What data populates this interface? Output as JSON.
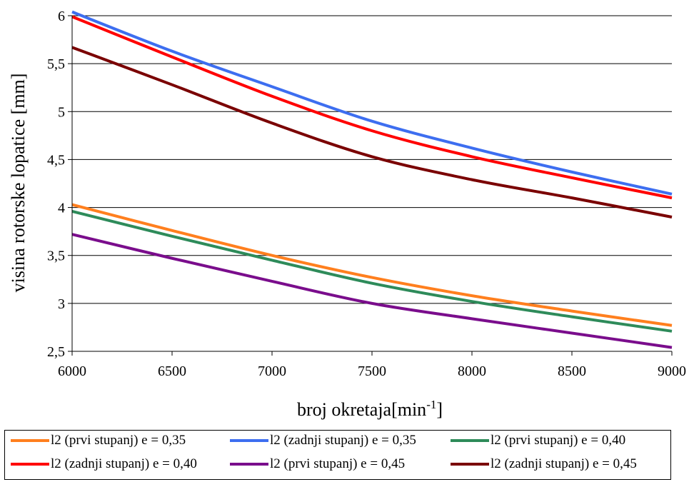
{
  "chart_data": {
    "type": "line",
    "xlabel": "broj okretaja",
    "xlabel_unit_base": "[min",
    "xlabel_unit_sup": "-1",
    "xlabel_unit_close": "]",
    "ylabel": "visina rotorske lopatice [mm]",
    "xlim": [
      6000,
      9000
    ],
    "ylim": [
      2.5,
      6
    ],
    "x_ticks": [
      6000,
      6500,
      7000,
      7500,
      8000,
      8500,
      9000
    ],
    "x_tick_labels": [
      "6000",
      "6500",
      "7000",
      "7500",
      "8000",
      "8500",
      "9000"
    ],
    "y_ticks": [
      2.5,
      3,
      3.5,
      4,
      4.5,
      5,
      5.5,
      6
    ],
    "y_tick_labels": [
      "2,5",
      "3",
      "3,5",
      "4",
      "4,5",
      "5",
      "5,5",
      "6"
    ],
    "grid": "horizontal",
    "legend_position": "bottom",
    "x": [
      6000,
      6500,
      7000,
      7500,
      8000,
      8500,
      9000
    ],
    "series": [
      {
        "name": "l2 (prvi stupanj) e = 0,35",
        "color": "#ff7f1e",
        "values": [
          4.03,
          3.76,
          3.5,
          3.27,
          3.08,
          2.92,
          2.77
        ]
      },
      {
        "name": "l2 (zadnji stupanj) e = 0,35",
        "color": "#3d6ef0",
        "values": [
          6.04,
          5.63,
          5.26,
          4.9,
          4.62,
          4.37,
          4.14
        ]
      },
      {
        "name": "l2 (prvi stupanj) e = 0,40",
        "color": "#2e8b5a",
        "values": [
          3.96,
          3.7,
          3.45,
          3.21,
          3.02,
          2.86,
          2.71
        ]
      },
      {
        "name": "l2 (zadnji stupanj) e = 0,40",
        "color": "#ff0000",
        "values": [
          5.99,
          5.57,
          5.16,
          4.8,
          4.53,
          4.31,
          4.1
        ]
      },
      {
        "name": "l2 (prvi stupanj) e = 0,45",
        "color": "#7a0d8c",
        "values": [
          3.72,
          3.47,
          3.23,
          3.0,
          2.84,
          2.69,
          2.54
        ]
      },
      {
        "name": "l2 (zadnji stupanj) e = 0,45",
        "color": "#7a0000",
        "values": [
          5.67,
          5.28,
          4.88,
          4.53,
          4.29,
          4.1,
          3.9
        ]
      }
    ]
  }
}
